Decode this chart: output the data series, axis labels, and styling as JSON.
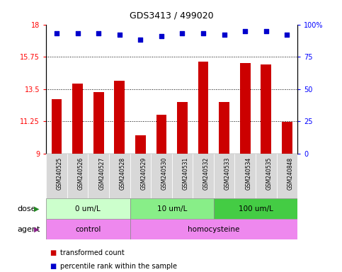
{
  "title": "GDS3413 / 499020",
  "samples": [
    "GSM240525",
    "GSM240526",
    "GSM240527",
    "GSM240528",
    "GSM240529",
    "GSM240530",
    "GSM240531",
    "GSM240532",
    "GSM240533",
    "GSM240534",
    "GSM240535",
    "GSM240848"
  ],
  "bar_values": [
    12.8,
    13.9,
    13.3,
    14.1,
    10.3,
    11.7,
    12.6,
    15.4,
    12.6,
    15.3,
    15.2,
    11.2
  ],
  "percentile_values": [
    93,
    93,
    93,
    92,
    88,
    91,
    93,
    93,
    92,
    95,
    95,
    92
  ],
  "bar_color": "#cc0000",
  "dot_color": "#0000cc",
  "ylim_left": [
    9,
    18
  ],
  "ylim_right": [
    0,
    100
  ],
  "yticks_left": [
    9,
    11.25,
    13.5,
    15.75,
    18
  ],
  "yticks_right": [
    0,
    25,
    50,
    75,
    100
  ],
  "ytick_labels_left": [
    "9",
    "11.25",
    "13.5",
    "15.75",
    "18"
  ],
  "ytick_labels_right": [
    "0",
    "25",
    "50",
    "75",
    "100%"
  ],
  "hlines": [
    11.25,
    13.5,
    15.75
  ],
  "dose_colors": [
    "#ccffcc",
    "#88ee88",
    "#44cc44"
  ],
  "dose_groups": [
    {
      "label": "0 um/L",
      "start": 0,
      "end": 4
    },
    {
      "label": "10 um/L",
      "start": 4,
      "end": 8
    },
    {
      "label": "100 um/L",
      "start": 8,
      "end": 12
    }
  ],
  "agent_color": "#ee88ee",
  "agent_groups": [
    {
      "label": "control",
      "start": 0,
      "end": 4
    },
    {
      "label": "homocysteine",
      "start": 4,
      "end": 12
    }
  ],
  "dose_label": "dose",
  "agent_label": "agent",
  "legend_items": [
    {
      "label": "transformed count",
      "color": "#cc0000"
    },
    {
      "label": "percentile rank within the sample",
      "color": "#0000cc"
    }
  ],
  "xtick_bg": "#d8d8d8",
  "plot_bg": "#ffffff"
}
